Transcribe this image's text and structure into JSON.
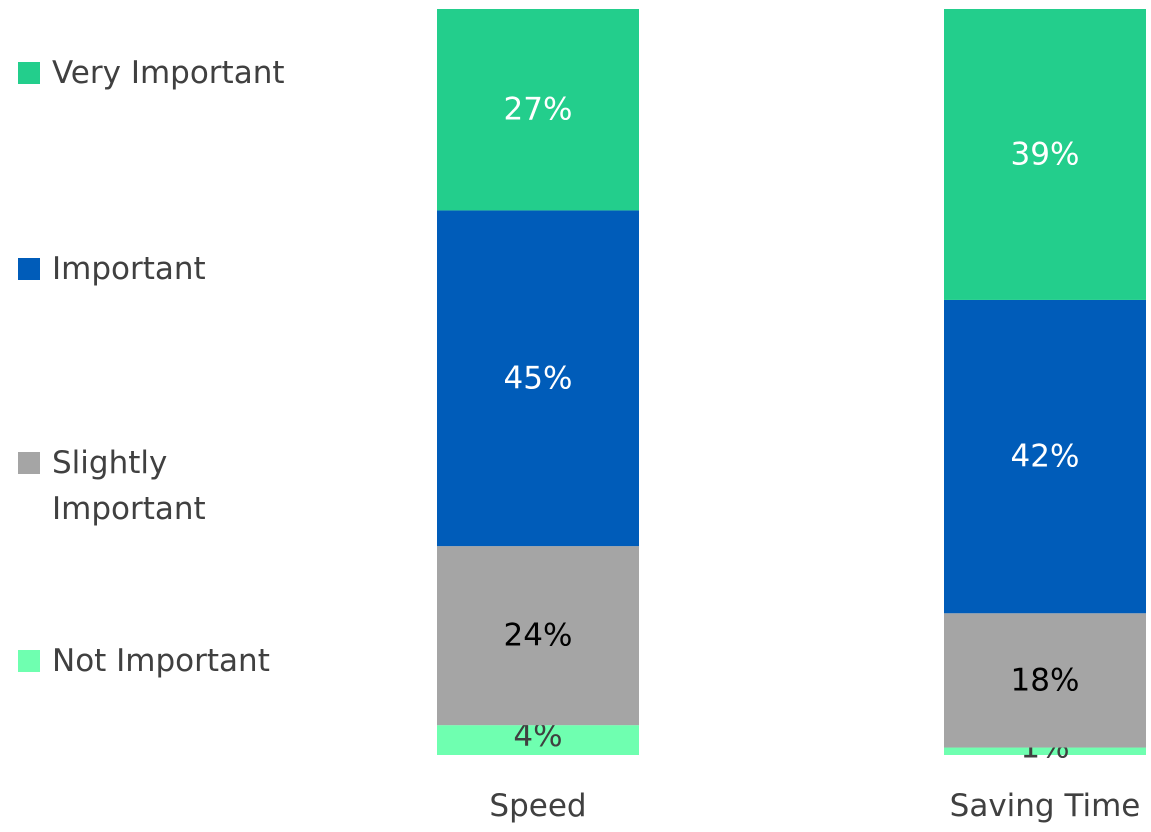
{
  "chart_data": {
    "type": "bar",
    "stacked": true,
    "categories": [
      "Speed",
      "Saving Time"
    ],
    "series": [
      {
        "name": "Not Important",
        "values": [
          4,
          1
        ],
        "labels": [
          "4%",
          "1%"
        ],
        "color": "#6FFFB0",
        "label_color": "#404040"
      },
      {
        "name": "Slightly Important",
        "values": [
          24,
          18
        ],
        "labels": [
          "24%",
          "18%"
        ],
        "color": "#A5A5A5",
        "label_color": "#000000"
      },
      {
        "name": "Important",
        "values": [
          45,
          42
        ],
        "labels": [
          "45%",
          "42%"
        ],
        "color": "#005CB9",
        "label_color": "#FFFFFF"
      },
      {
        "name": "Very Important",
        "values": [
          27,
          39
        ],
        "labels": [
          "27%",
          "39%"
        ],
        "color": "#23CE8C",
        "label_color": "#FFFFFF"
      }
    ],
    "legend": {
      "position": "left",
      "order": [
        "Very Important",
        "Important",
        "Slightly Important",
        "Not Important"
      ]
    },
    "ylim": [
      0,
      100
    ],
    "grid": false,
    "xlabel": "",
    "ylabel": "",
    "title": ""
  }
}
